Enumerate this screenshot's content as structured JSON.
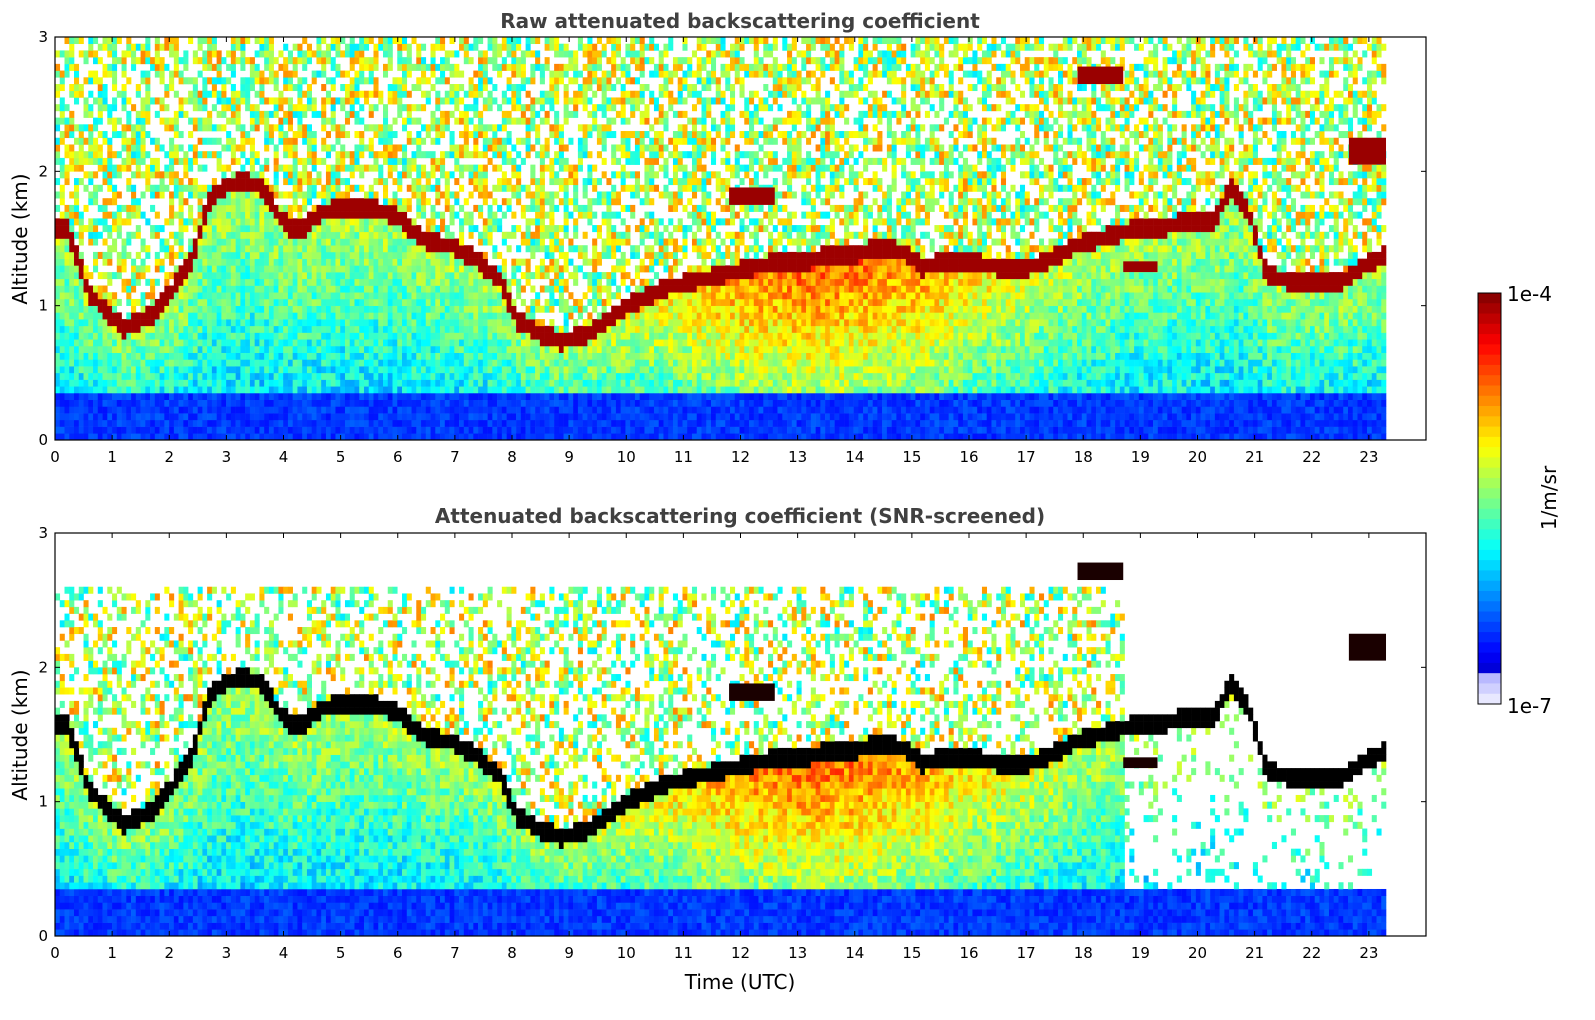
{
  "chart_data": [
    {
      "type": "heatmap",
      "title": "Raw attenuated backscattering coefficient",
      "xlabel": "",
      "ylabel": "Altitude (km)",
      "xlim": [
        0,
        24
      ],
      "ylim": [
        0,
        3
      ],
      "x_ticks": [
        "0",
        "1",
        "2",
        "3",
        "4",
        "5",
        "6",
        "7",
        "8",
        "9",
        "10",
        "11",
        "12",
        "13",
        "14",
        "15",
        "16",
        "17",
        "18",
        "19",
        "20",
        "21",
        "22",
        "23"
      ],
      "y_ticks": [
        "0",
        "1",
        "2",
        "3"
      ],
      "data_extent_hours": [
        0,
        23.3
      ],
      "layer_top_km": [
        [
          0.2,
          1.6
        ],
        [
          0.6,
          1.1
        ],
        [
          1.2,
          0.85
        ],
        [
          1.7,
          0.95
        ],
        [
          2.0,
          1.1
        ],
        [
          2.4,
          1.35
        ],
        [
          2.7,
          1.8
        ],
        [
          3.0,
          1.9
        ],
        [
          3.3,
          1.95
        ],
        [
          3.6,
          1.9
        ],
        [
          3.9,
          1.7
        ],
        [
          4.1,
          1.6
        ],
        [
          4.4,
          1.6
        ],
        [
          4.6,
          1.7
        ],
        [
          5.0,
          1.75
        ],
        [
          5.5,
          1.75
        ],
        [
          5.9,
          1.7
        ],
        [
          6.2,
          1.6
        ],
        [
          6.5,
          1.5
        ],
        [
          7.0,
          1.45
        ],
        [
          7.4,
          1.35
        ],
        [
          7.8,
          1.2
        ],
        [
          8.1,
          0.9
        ],
        [
          8.5,
          0.8
        ],
        [
          8.9,
          0.75
        ],
        [
          9.3,
          0.8
        ],
        [
          9.8,
          0.95
        ],
        [
          10.2,
          1.05
        ],
        [
          10.7,
          1.15
        ],
        [
          11.2,
          1.2
        ],
        [
          11.7,
          1.25
        ],
        [
          12.2,
          1.3
        ],
        [
          12.7,
          1.35
        ],
        [
          13.2,
          1.35
        ],
        [
          13.6,
          1.4
        ],
        [
          14.0,
          1.4
        ],
        [
          14.5,
          1.45
        ],
        [
          14.9,
          1.4
        ],
        [
          15.2,
          1.3
        ],
        [
          15.6,
          1.35
        ],
        [
          16.0,
          1.35
        ],
        [
          16.5,
          1.3
        ],
        [
          17.0,
          1.3
        ],
        [
          17.4,
          1.35
        ],
        [
          17.8,
          1.45
        ],
        [
          18.2,
          1.5
        ],
        [
          18.6,
          1.55
        ],
        [
          19.0,
          1.6
        ],
        [
          19.4,
          1.6
        ],
        [
          19.9,
          1.65
        ],
        [
          20.3,
          1.65
        ],
        [
          20.6,
          1.9
        ],
        [
          20.9,
          1.7
        ],
        [
          21.2,
          1.25
        ],
        [
          21.6,
          1.2
        ],
        [
          22.0,
          1.2
        ],
        [
          22.5,
          1.2
        ],
        [
          22.9,
          1.3
        ],
        [
          23.3,
          1.4
        ]
      ],
      "elevated_layers": [
        {
          "x0": 17.9,
          "x1": 18.7,
          "y0": 2.65,
          "y1": 2.78
        },
        {
          "x0": 22.65,
          "x1": 23.3,
          "y0": 2.05,
          "y1": 2.25
        },
        {
          "x0": 11.8,
          "x1": 12.6,
          "y0": 1.75,
          "y1": 1.88
        },
        {
          "x0": 18.7,
          "x1": 19.3,
          "y0": 1.25,
          "y1": 1.33
        }
      ]
    },
    {
      "type": "heatmap",
      "title": "Attenuated backscattering coefficient (SNR-screened)",
      "xlabel": "Time (UTC)",
      "ylabel": "Altitude (km)",
      "xlim": [
        0,
        24
      ],
      "ylim": [
        0,
        3
      ],
      "x_ticks": [
        "0",
        "1",
        "2",
        "3",
        "4",
        "5",
        "6",
        "7",
        "8",
        "9",
        "10",
        "11",
        "12",
        "13",
        "14",
        "15",
        "16",
        "17",
        "18",
        "19",
        "20",
        "21",
        "22",
        "23"
      ],
      "y_ticks": [
        "0",
        "1",
        "2",
        "3"
      ],
      "data_extent_hours": [
        0,
        23.3
      ],
      "screen_cutoff_hours": 18.7,
      "layer_top_km": [
        [
          0.2,
          1.6
        ],
        [
          0.6,
          1.1
        ],
        [
          1.2,
          0.85
        ],
        [
          1.7,
          0.95
        ],
        [
          2.0,
          1.1
        ],
        [
          2.4,
          1.35
        ],
        [
          2.7,
          1.8
        ],
        [
          3.0,
          1.9
        ],
        [
          3.3,
          1.95
        ],
        [
          3.6,
          1.9
        ],
        [
          3.9,
          1.7
        ],
        [
          4.1,
          1.6
        ],
        [
          4.4,
          1.6
        ],
        [
          4.6,
          1.7
        ],
        [
          5.0,
          1.75
        ],
        [
          5.5,
          1.75
        ],
        [
          5.9,
          1.7
        ],
        [
          6.2,
          1.6
        ],
        [
          6.5,
          1.5
        ],
        [
          7.0,
          1.45
        ],
        [
          7.4,
          1.35
        ],
        [
          7.8,
          1.2
        ],
        [
          8.1,
          0.9
        ],
        [
          8.5,
          0.8
        ],
        [
          8.9,
          0.75
        ],
        [
          9.3,
          0.8
        ],
        [
          9.8,
          0.95
        ],
        [
          10.2,
          1.05
        ],
        [
          10.7,
          1.15
        ],
        [
          11.2,
          1.2
        ],
        [
          11.7,
          1.25
        ],
        [
          12.2,
          1.3
        ],
        [
          12.7,
          1.35
        ],
        [
          13.2,
          1.35
        ],
        [
          13.6,
          1.4
        ],
        [
          14.0,
          1.4
        ],
        [
          14.5,
          1.45
        ],
        [
          14.9,
          1.4
        ],
        [
          15.2,
          1.3
        ],
        [
          15.6,
          1.35
        ],
        [
          16.0,
          1.35
        ],
        [
          16.5,
          1.3
        ],
        [
          17.0,
          1.3
        ],
        [
          17.4,
          1.35
        ],
        [
          17.8,
          1.45
        ],
        [
          18.2,
          1.5
        ],
        [
          18.6,
          1.55
        ],
        [
          19.0,
          1.6
        ],
        [
          19.4,
          1.6
        ],
        [
          19.9,
          1.65
        ],
        [
          20.3,
          1.65
        ],
        [
          20.6,
          1.9
        ],
        [
          20.9,
          1.7
        ],
        [
          21.2,
          1.25
        ],
        [
          21.6,
          1.2
        ],
        [
          22.0,
          1.2
        ],
        [
          22.5,
          1.2
        ],
        [
          22.9,
          1.3
        ],
        [
          23.3,
          1.4
        ]
      ],
      "elevated_layers": [
        {
          "x0": 17.9,
          "x1": 18.7,
          "y0": 2.65,
          "y1": 2.78
        },
        {
          "x0": 22.65,
          "x1": 23.3,
          "y0": 2.05,
          "y1": 2.25
        },
        {
          "x0": 11.8,
          "x1": 12.6,
          "y0": 1.75,
          "y1": 1.88
        },
        {
          "x0": 18.7,
          "x1": 19.3,
          "y0": 1.25,
          "y1": 1.33
        }
      ]
    }
  ],
  "colorbar": {
    "max_label": "1e-4",
    "min_label": "1e-7",
    "unit_label": "1/m/sr",
    "scale": "log"
  }
}
